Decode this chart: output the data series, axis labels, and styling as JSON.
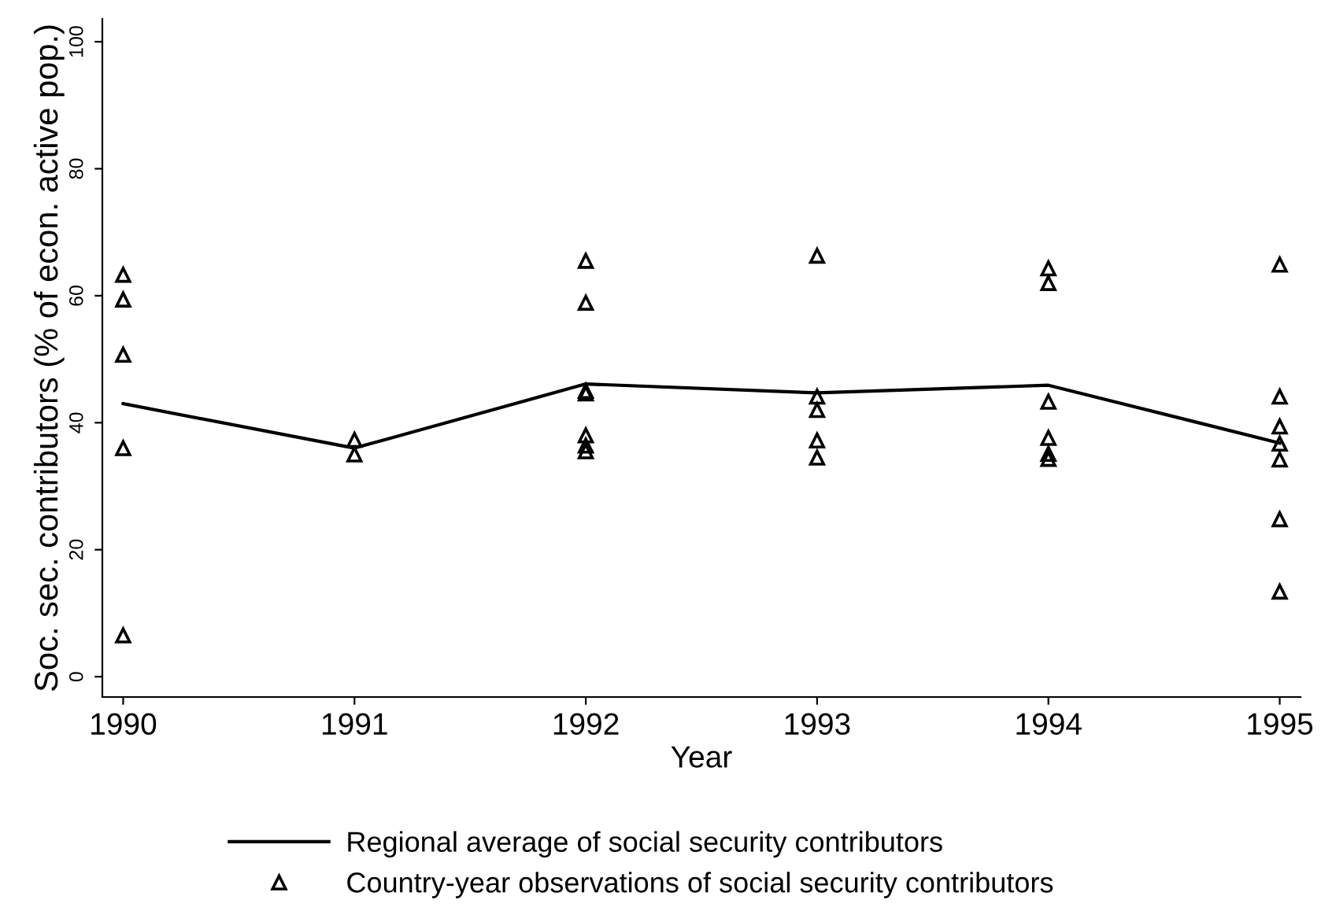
{
  "chart_data": {
    "type": "line",
    "xlabel": "Year",
    "ylabel": "Soc. sec. contributors (% of econ. active pop.)",
    "xlim": [
      1989.91,
      1995.09
    ],
    "ylim": [
      -3.2,
      103.6
    ],
    "xticks": [
      1990,
      1991,
      1992,
      1993,
      1994,
      1995
    ],
    "yticks": [
      0,
      20,
      40,
      60,
      80,
      100
    ],
    "grid": false,
    "legend": "bottom",
    "series": [
      {
        "name": "Regional average of social security contributors",
        "color": "#000000",
        "marker": "none",
        "line_style": "solid",
        "x": [
          1990,
          1991,
          1992,
          1993,
          1994,
          1995
        ],
        "values": [
          43,
          36,
          46.1,
          44.7,
          45.9,
          36.8
        ]
      },
      {
        "name": "Country-year observations of social security contributors",
        "type": "scatter",
        "color": "#000000",
        "marker": "triangle",
        "x": [
          1990,
          1990,
          1990,
          1990,
          1990,
          1991,
          1991,
          1992,
          1992,
          1992,
          1992,
          1992,
          1992,
          1992,
          1993,
          1993,
          1993,
          1993,
          1993,
          1994,
          1994,
          1994,
          1994,
          1994,
          1994,
          1995,
          1995,
          1995,
          1995,
          1995,
          1995,
          1995
        ],
        "values": [
          63.3,
          59.4,
          50.7,
          36,
          6.5,
          37.3,
          35,
          65.5,
          58.9,
          45,
          44.6,
          38,
          36.4,
          35.5,
          66.3,
          44.1,
          42,
          37.2,
          34.5,
          64.3,
          62,
          43.3,
          37.6,
          35.1,
          34.3,
          64.9,
          44.1,
          39.4,
          36.7,
          34.2,
          24.8,
          13.4
        ]
      }
    ]
  }
}
